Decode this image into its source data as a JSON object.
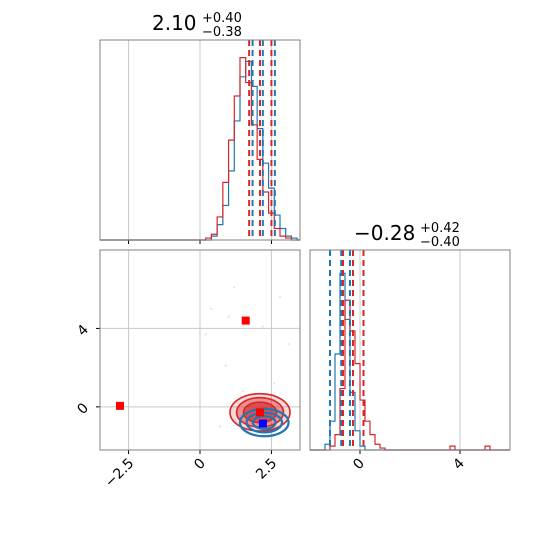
{
  "colors": {
    "series_blue": "#1f77b4",
    "series_red": "#d62728",
    "marker_blue": "#0000ff",
    "marker_red": "#ff0000",
    "grid": "#c8c8c8",
    "axes": "#808080"
  },
  "titles": {
    "param1": {
      "value": "2.10",
      "plus": "+0.40",
      "minus": "−0.38"
    },
    "param2": {
      "value": "−0.28",
      "plus": "+0.42",
      "minus": "−0.40"
    }
  },
  "chart_data": [
    {
      "type": "histogram",
      "panel": "top-left",
      "xlim": [
        -3.5,
        3.5
      ],
      "grid": true,
      "x_ticks": [
        -2.5,
        0.0,
        2.5
      ],
      "bin_edges": [
        0.2,
        0.4,
        0.6,
        0.8,
        1.0,
        1.2,
        1.4,
        1.6,
        1.8,
        2.0,
        2.2,
        2.4,
        2.6,
        2.8,
        3.0,
        3.2,
        3.4
      ],
      "series": [
        {
          "color_key": "series_blue",
          "counts": [
            0,
            0.02,
            0.08,
            0.18,
            0.36,
            0.62,
            0.85,
            0.93,
            0.8,
            0.58,
            0.4,
            0.27,
            0.13,
            0.06,
            0.02,
            0.01
          ]
        },
        {
          "color_key": "series_red",
          "counts": [
            0.01,
            0.03,
            0.12,
            0.3,
            0.52,
            0.75,
            0.95,
            0.82,
            0.6,
            0.42,
            0.25,
            0.14,
            0.06,
            0.02,
            0.01,
            0
          ]
        }
      ],
      "quantile_lines": [
        {
          "color_key": "series_red",
          "x": [
            1.72,
            2.1,
            2.5
          ]
        },
        {
          "color_key": "series_blue",
          "x": [
            1.84,
            2.2,
            2.62
          ]
        }
      ]
    },
    {
      "type": "histogram",
      "panel": "bottom-right",
      "xlim": [
        -2.0,
        6.0
      ],
      "grid": true,
      "x_ticks": [
        0,
        4
      ],
      "bin_edges": [
        -1.4,
        -1.2,
        -1.0,
        -0.8,
        -0.6,
        -0.4,
        -0.2,
        0.0,
        0.2,
        0.4,
        0.6,
        0.8,
        1.0,
        1.2
      ],
      "series": [
        {
          "color_key": "series_blue",
          "counts": [
            0.03,
            0.15,
            0.5,
            0.92,
            0.68,
            0.3,
            0.1,
            0.02,
            0,
            0,
            0,
            0,
            0
          ]
        },
        {
          "color_key": "series_red",
          "counts": [
            0,
            0.02,
            0.08,
            0.32,
            0.78,
            0.62,
            0.45,
            0.26,
            0.15,
            0.08,
            0.03,
            0.01,
            0
          ]
        }
      ],
      "tail_blips": [
        {
          "color_key": "series_red",
          "x": [
            3.6,
            3.8
          ],
          "count": 0.02
        },
        {
          "color_key": "series_red",
          "x": [
            5.0,
            5.2
          ],
          "count": 0.02
        }
      ],
      "quantile_lines": [
        {
          "color_key": "series_blue",
          "x": [
            -1.2,
            -0.75,
            -0.4
          ]
        },
        {
          "color_key": "series_red",
          "x": [
            -0.68,
            -0.28,
            0.14
          ]
        }
      ]
    },
    {
      "type": "scatter",
      "panel": "bottom-left",
      "xlim": [
        -3.5,
        3.5
      ],
      "ylim": [
        -2.2,
        8.0
      ],
      "grid": true,
      "x_ticks": [
        -2.5,
        0.0,
        2.5
      ],
      "y_ticks": [
        0,
        4
      ],
      "contours": [
        {
          "color_key": "series_red",
          "center": [
            2.1,
            -0.28
          ],
          "radii": [
            [
              1.05,
              0.95
            ],
            [
              0.82,
              0.75
            ],
            [
              0.58,
              0.52
            ]
          ]
        },
        {
          "color_key": "series_blue",
          "center": [
            2.25,
            -0.8
          ],
          "radii": [
            [
              0.85,
              0.7
            ],
            [
              0.62,
              0.5
            ],
            [
              0.4,
              0.32
            ]
          ]
        }
      ],
      "markers": [
        {
          "color_key": "marker_red",
          "x": 1.6,
          "y": 4.4
        },
        {
          "color_key": "marker_red",
          "x": -2.8,
          "y": 0.05
        },
        {
          "color_key": "marker_red",
          "x": 2.1,
          "y": -0.28
        },
        {
          "color_key": "marker_blue",
          "x": 2.2,
          "y": -0.85
        }
      ]
    }
  ]
}
